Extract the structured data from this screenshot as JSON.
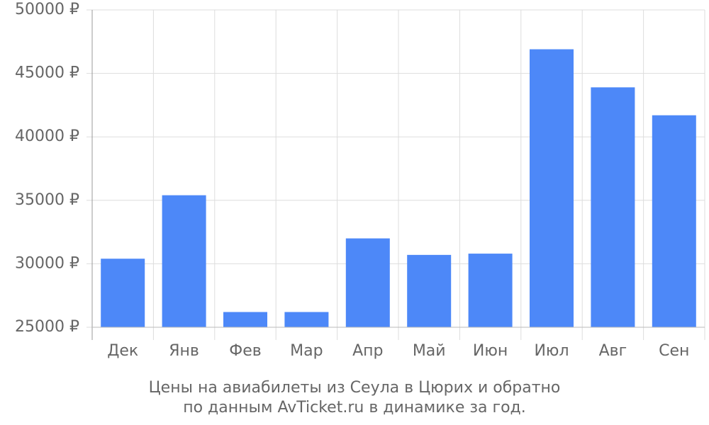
{
  "chart_data": {
    "type": "bar",
    "title": [
      "Цены на авиабилеты из Сеула в Цюрих и обратно",
      "по данным AvTicket.ru в динамике за год."
    ],
    "categories": [
      "Дек",
      "Янв",
      "Фев",
      "Мар",
      "Апр",
      "Май",
      "Июн",
      "Июл",
      "Авг",
      "Сен"
    ],
    "values": [
      30400,
      35400,
      26200,
      26200,
      32000,
      30700,
      30800,
      46900,
      43900,
      41700
    ],
    "color": "#4d88f8",
    "ylim": [
      25000,
      50000
    ],
    "yticks": [
      {
        "value": 25000,
        "label": "25000 ₽"
      },
      {
        "value": 30000,
        "label": "30000 ₽"
      },
      {
        "value": 35000,
        "label": "35000 ₽"
      },
      {
        "value": 40000,
        "label": "40000 ₽"
      },
      {
        "value": 45000,
        "label": "45000 ₽"
      },
      {
        "value": 50000,
        "label": "50000 ₽"
      }
    ],
    "grid": true
  }
}
